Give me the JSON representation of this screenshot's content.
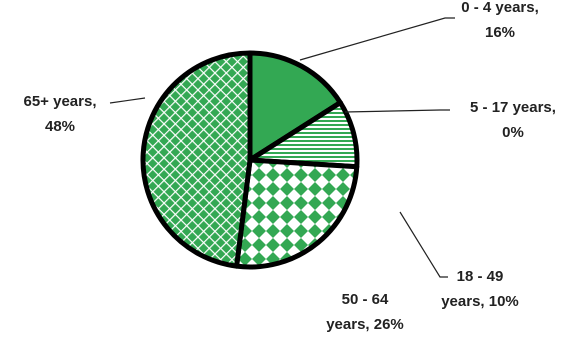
{
  "chart_data": {
    "type": "pie",
    "labels": [
      [
        "0 - 4 years,",
        "16%"
      ],
      [
        "5 - 17 years,",
        "0%"
      ],
      [
        "18 - 49",
        "years, 10%"
      ],
      [
        "50 - 64",
        "years, 26%"
      ],
      [
        "65+ years,",
        "48%"
      ]
    ],
    "values": [
      16,
      0,
      10,
      26,
      48
    ],
    "color": "#33a853"
  }
}
